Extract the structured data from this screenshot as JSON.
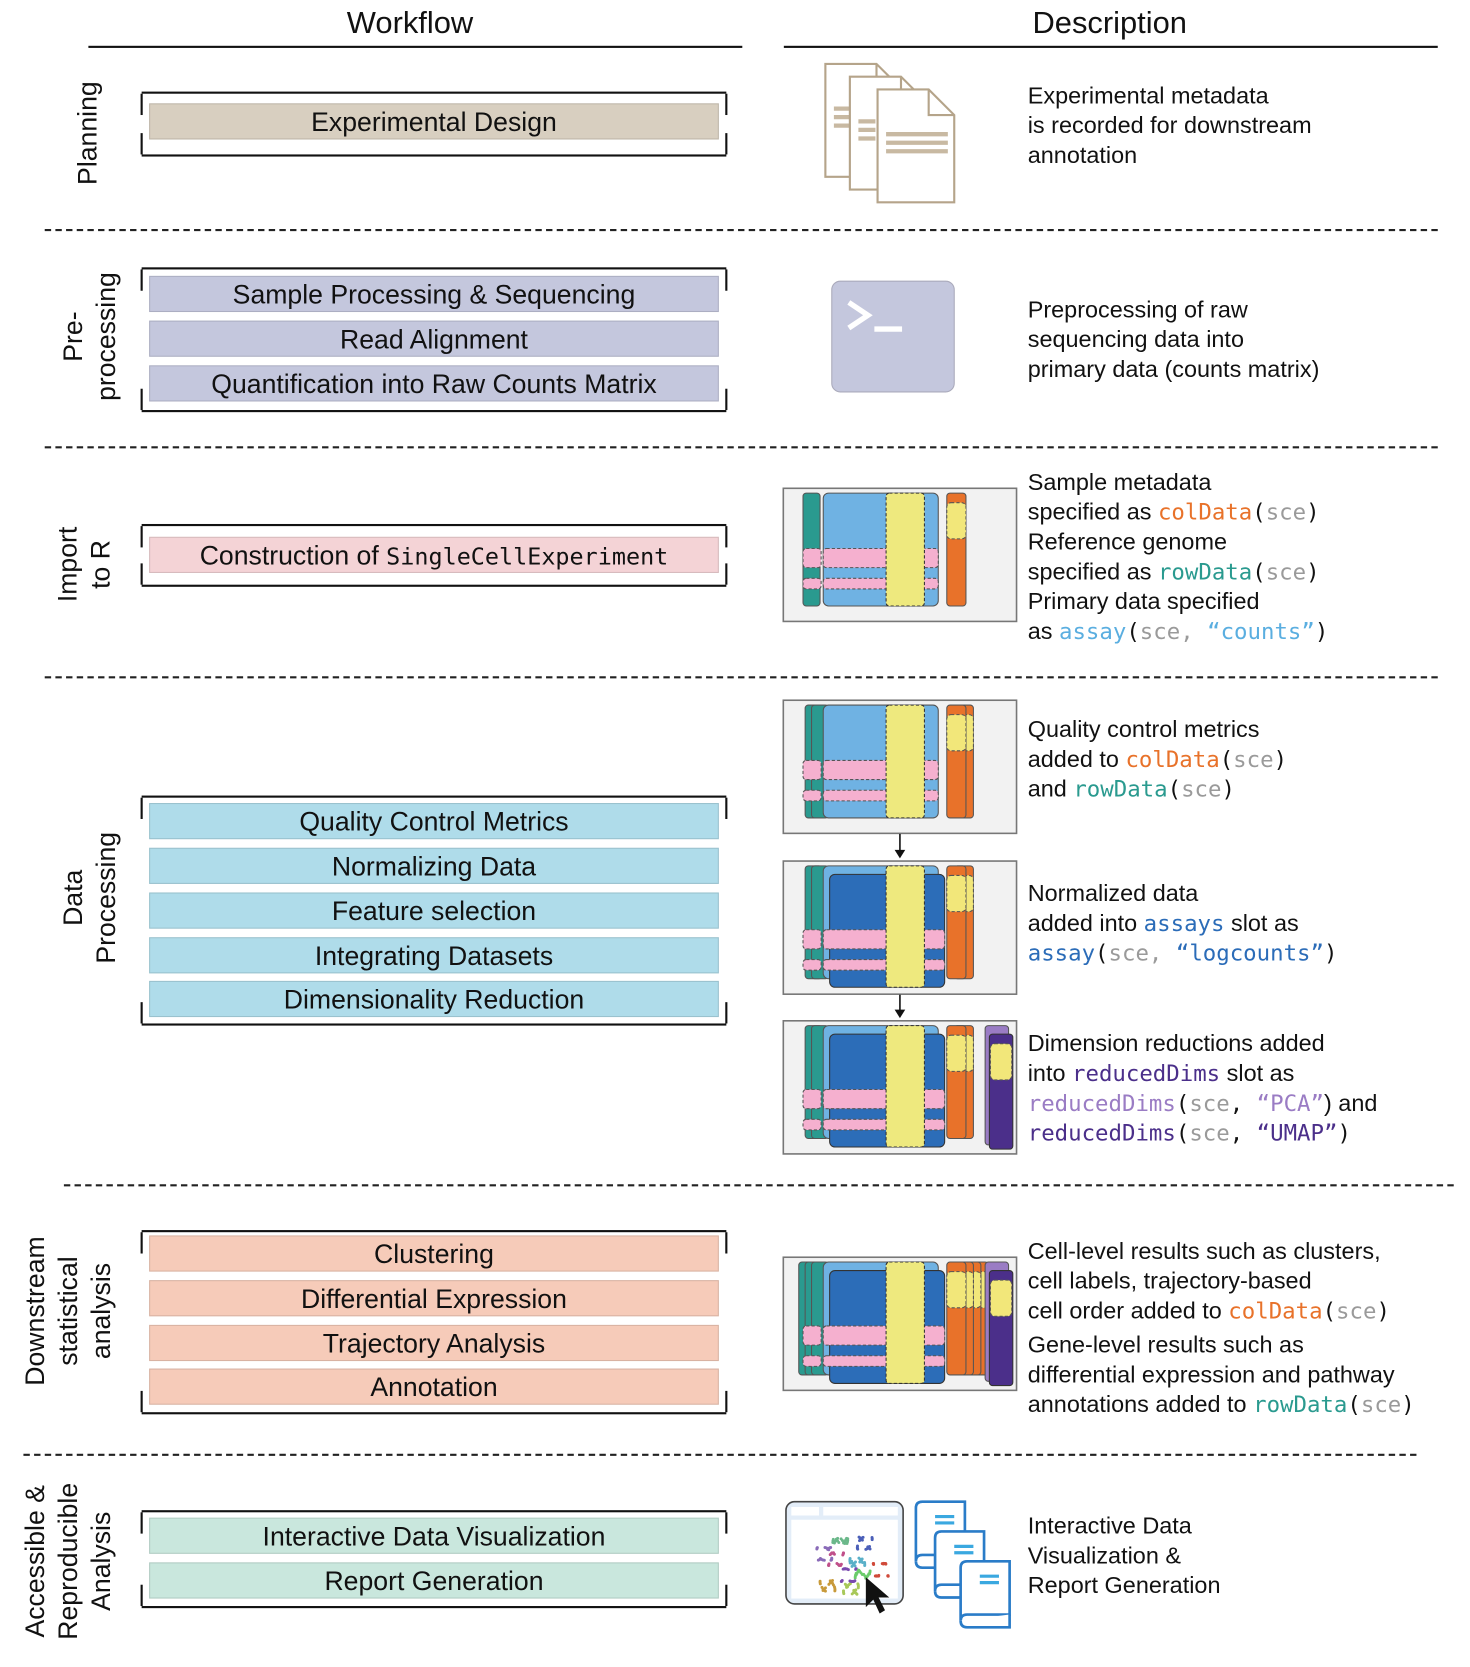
{
  "headers": {
    "workflow": "Workflow",
    "description": "Description"
  },
  "colors": {
    "orange": "#e8722a",
    "teal": "#2a9a8f",
    "lightblue": "#5aaee0",
    "gray": "#9a9a9a",
    "blue": "#2b6cb8",
    "lightpurple": "#9a7cc4",
    "darkpurple": "#4b2f8a",
    "text": "#111111"
  },
  "sections": [
    {
      "label": "Planning",
      "color": "#d8cfc0",
      "steps": [
        "Experimental Design"
      ],
      "icon": "documents-icon",
      "desc": [
        [
          [
            "Experimental metadata",
            "text"
          ]
        ],
        [
          [
            "is recorded for downstream",
            "text"
          ]
        ],
        [
          [
            "annotation",
            "text"
          ]
        ]
      ]
    },
    {
      "label": "Pre-\nprocessing",
      "color": "#c4c7dd",
      "steps": [
        "Sample Processing & Sequencing",
        "Read Alignment",
        "Quantification into Raw Counts Matrix"
      ],
      "icon": "terminal-icon",
      "icon_text": ">_",
      "desc": [
        [
          [
            "Preprocessing of raw",
            "text"
          ]
        ],
        [
          [
            "sequencing data into",
            "text"
          ]
        ],
        [
          [
            "primary data (counts matrix)",
            "text"
          ]
        ]
      ]
    },
    {
      "label": "Import\nto R",
      "color": "#f4d3d6",
      "steps": [
        [
          "Construction of ",
          "SingleCellExperiment"
        ]
      ],
      "icon": "sce-container-icon",
      "desc": [
        [
          [
            "Sample metadata",
            "text"
          ]
        ],
        [
          [
            "specified as ",
            "text"
          ],
          [
            "colData",
            "orange"
          ],
          [
            "(",
            "text"
          ],
          [
            "sce",
            "gray"
          ],
          [
            ")",
            "text"
          ]
        ],
        [
          [
            "Reference genome",
            "text"
          ]
        ],
        [
          [
            "specified as ",
            "text"
          ],
          [
            "rowData",
            "teal"
          ],
          [
            "(",
            "text"
          ],
          [
            "sce",
            "gray"
          ],
          [
            ")",
            "text"
          ]
        ],
        [
          [
            "Primary data specified",
            "text"
          ]
        ],
        [
          [
            "as ",
            "text"
          ],
          [
            "assay",
            "lightblue"
          ],
          [
            "(",
            "text"
          ],
          [
            "sce, ",
            "gray"
          ],
          [
            "“counts”",
            "lightblue"
          ],
          [
            ")",
            "text"
          ]
        ]
      ]
    },
    {
      "label": "Data\nProcessing",
      "color": "#afdcea",
      "steps": [
        "Quality Control Metrics",
        "Normalizing Data",
        "Feature selection",
        "Integrating Datasets",
        "Dimensionality Reduction"
      ],
      "icon": "sce-container-icon",
      "descs": [
        [
          [
            [
              "Quality control metrics",
              "text"
            ]
          ],
          [
            [
              "added to ",
              "text"
            ],
            [
              "colData",
              "orange"
            ],
            [
              "(",
              "text"
            ],
            [
              "sce",
              "gray"
            ],
            [
              ")",
              "text"
            ]
          ],
          [
            [
              "and ",
              "text"
            ],
            [
              "rowData",
              "teal"
            ],
            [
              "(",
              "text"
            ],
            [
              "sce",
              "gray"
            ],
            [
              ")",
              "text"
            ]
          ]
        ],
        [
          [
            [
              "Normalized data",
              "text"
            ]
          ],
          [
            [
              "added into ",
              "text"
            ],
            [
              "assays",
              "blue"
            ],
            [
              " slot as",
              "text"
            ]
          ],
          [
            [
              "assay",
              "blue"
            ],
            [
              "(",
              "text"
            ],
            [
              "sce, ",
              "gray"
            ],
            [
              "“logcounts”",
              "blue"
            ],
            [
              ")",
              "text"
            ]
          ]
        ],
        [
          [
            [
              "Dimension reductions added",
              "text"
            ]
          ],
          [
            [
              "into ",
              "text"
            ],
            [
              "reducedDims",
              "darkpurple"
            ],
            [
              " slot as",
              "text"
            ]
          ],
          [
            [
              "reducedDims",
              "lightpurple"
            ],
            [
              "(",
              "text"
            ],
            [
              "sce",
              "gray"
            ],
            [
              ", ",
              "text"
            ],
            [
              "“PCA”",
              "lightpurple"
            ],
            [
              ") and",
              "text"
            ]
          ],
          [
            [
              "reducedDims",
              "darkpurple"
            ],
            [
              "(",
              "text"
            ],
            [
              "sce",
              "gray"
            ],
            [
              ", ",
              "text"
            ],
            [
              "“UMAP”",
              "darkpurple"
            ],
            [
              ")",
              "text"
            ]
          ]
        ]
      ]
    },
    {
      "label": "Downstream\nstatistical\nanalysis",
      "color": "#f6cbb9",
      "steps": [
        "Clustering",
        "Differential Expression",
        "Trajectory Analysis",
        "Annotation"
      ],
      "icon": "sce-container-icon",
      "desc": [
        [
          [
            "Cell-level results such as  clusters,",
            "text"
          ]
        ],
        [
          [
            "cell labels, trajectory-based",
            "text"
          ]
        ],
        [
          [
            "cell order added to ",
            "text"
          ],
          [
            "colData",
            "orange"
          ],
          [
            "(",
            "text"
          ],
          [
            "sce",
            "gray"
          ],
          [
            ")",
            "text"
          ]
        ],
        [
          [
            "Gene-level results such as",
            "text"
          ]
        ],
        [
          [
            "differential expression and pathway",
            "text"
          ]
        ],
        [
          [
            "annotations added to ",
            "text"
          ],
          [
            "rowData",
            "teal"
          ],
          [
            "(",
            "text"
          ],
          [
            "sce",
            "gray"
          ],
          [
            ")",
            "text"
          ]
        ]
      ]
    },
    {
      "label": "Accessible &\nReproducible\nAnalysis",
      "color": "#c9e7dd",
      "steps": [
        "Interactive Data Visualization",
        "Report Generation"
      ],
      "icon": "interactive-app-icon",
      "desc": [
        [
          [
            "Interactive Data",
            "text"
          ]
        ],
        [
          [
            "Visualization &",
            "text"
          ]
        ],
        [
          [
            "Report Generation",
            "text"
          ]
        ]
      ]
    }
  ]
}
